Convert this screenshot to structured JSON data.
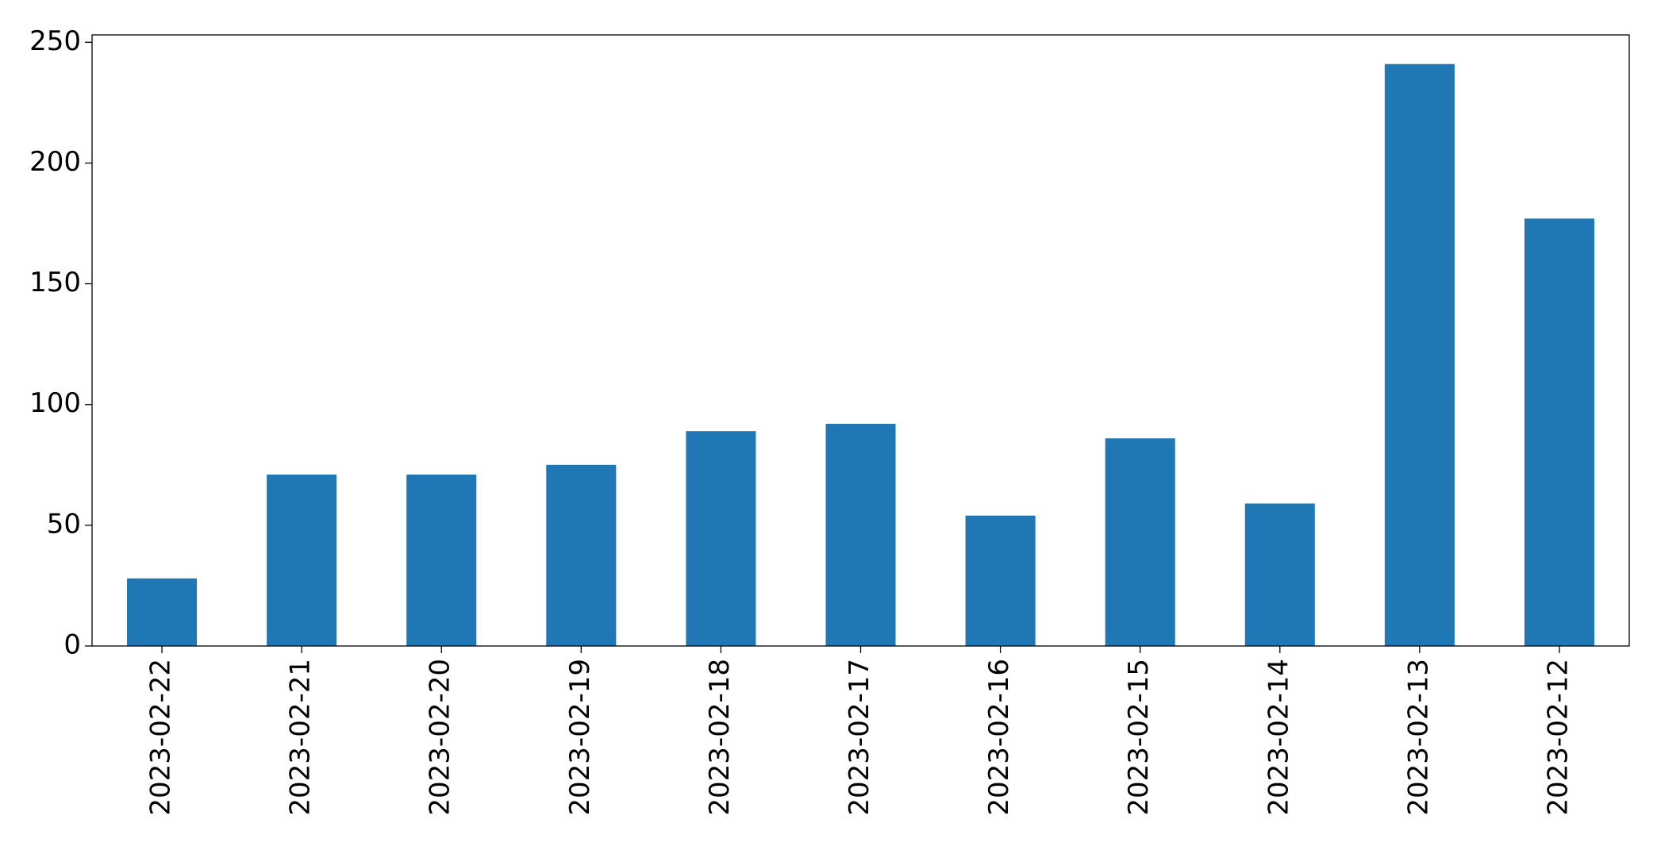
{
  "chart_data": {
    "type": "bar",
    "categories": [
      "2023-02-22",
      "2023-02-21",
      "2023-02-20",
      "2023-02-19",
      "2023-02-18",
      "2023-02-17",
      "2023-02-16",
      "2023-02-15",
      "2023-02-14",
      "2023-02-13",
      "2023-02-12"
    ],
    "values": [
      28,
      71,
      71,
      75,
      89,
      92,
      54,
      86,
      59,
      241,
      177
    ],
    "color": "#1f77b4",
    "ylim": [
      0,
      253.05
    ],
    "yticks": [
      0,
      50,
      100,
      150,
      200,
      250
    ],
    "grid": false
  }
}
